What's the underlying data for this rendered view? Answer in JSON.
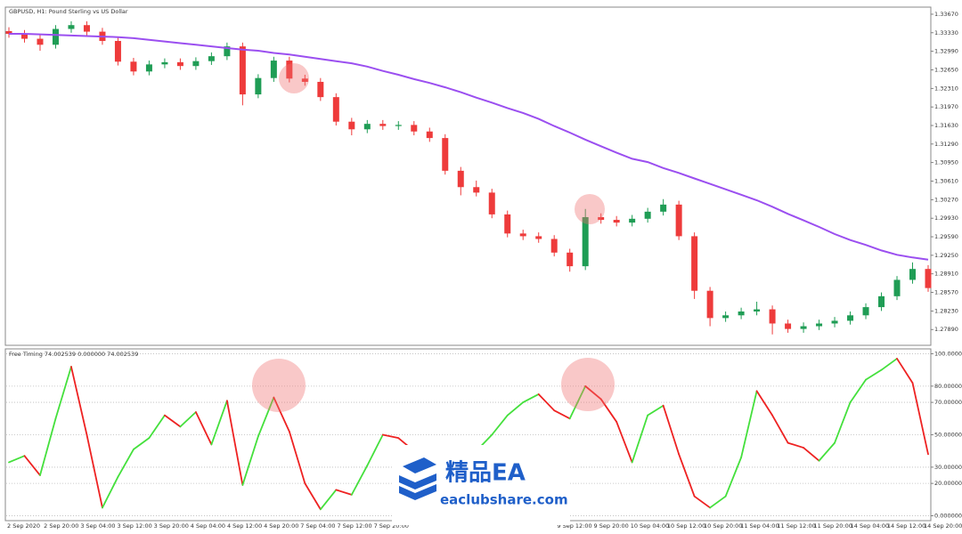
{
  "chart_data": [
    {
      "type": "candlestick",
      "title": "GBPUSD, H1: Pound Sterling vs US Dollar",
      "up_color": "#1f9d55",
      "down_color": "#ee3b3b",
      "ylim": [
        1.276,
        1.338
      ],
      "yticks": [
        {
          "value": 1.3367,
          "label": "1.33670"
        },
        {
          "value": 1.3333,
          "label": "1.33330"
        },
        {
          "value": 1.3299,
          "label": "1.32990"
        },
        {
          "value": 1.3265,
          "label": "1.32650"
        },
        {
          "value": 1.3231,
          "label": "1.32310"
        },
        {
          "value": 1.3197,
          "label": "1.31970"
        },
        {
          "value": 1.3163,
          "label": "1.31630"
        },
        {
          "value": 1.3129,
          "label": "1.31290"
        },
        {
          "value": 1.3095,
          "label": "1.30950"
        },
        {
          "value": 1.3061,
          "label": "1.30610"
        },
        {
          "value": 1.3027,
          "label": "1.30270"
        },
        {
          "value": 1.2993,
          "label": "1.29930"
        },
        {
          "value": 1.2959,
          "label": "1.29590"
        },
        {
          "value": 1.2925,
          "label": "1.29250"
        },
        {
          "value": 1.2891,
          "label": "1.28910"
        },
        {
          "value": 1.2857,
          "label": "1.28570"
        },
        {
          "value": 1.2823,
          "label": "1.28230"
        },
        {
          "value": 1.2789,
          "label": "1.27890"
        }
      ],
      "open": [
        1.3336,
        1.3331,
        1.3322,
        1.3311,
        1.334,
        1.3347,
        1.3335,
        1.3318,
        1.328,
        1.3262,
        1.3275,
        1.3279,
        1.3272,
        1.3281,
        1.329,
        1.3308,
        1.322,
        1.325,
        1.3282,
        1.3249,
        1.3243,
        1.3215,
        1.317,
        1.3156,
        1.3166,
        1.3162,
        1.3164,
        1.3152,
        1.314,
        1.308,
        1.305,
        1.304,
        1.3,
        1.2965,
        1.296,
        1.2955,
        1.293,
        1.2905,
        1.2995,
        1.299,
        1.2985,
        1.2992,
        1.3005,
        1.3018,
        1.296,
        1.286,
        1.281,
        1.2815,
        1.2822,
        1.2826,
        1.28,
        1.279,
        1.2795,
        1.28,
        1.2805,
        1.2815,
        1.283,
        1.285,
        1.288,
        1.29
      ],
      "high": [
        1.3343,
        1.3338,
        1.3329,
        1.3347,
        1.3354,
        1.3354,
        1.3342,
        1.3325,
        1.3287,
        1.3282,
        1.3286,
        1.3286,
        1.3288,
        1.3297,
        1.3315,
        1.3315,
        1.3257,
        1.3289,
        1.3289,
        1.3256,
        1.325,
        1.3222,
        1.3177,
        1.3173,
        1.3173,
        1.3171,
        1.3171,
        1.3159,
        1.3147,
        1.3087,
        1.3062,
        1.3047,
        1.3007,
        1.2972,
        1.2967,
        1.2962,
        1.2937,
        1.301,
        1.3002,
        1.2997,
        1.2999,
        1.3012,
        1.3028,
        1.3025,
        1.2967,
        1.2867,
        1.2822,
        1.2829,
        1.284,
        1.2833,
        1.2807,
        1.2802,
        1.2807,
        1.2812,
        1.2822,
        1.2837,
        1.2857,
        1.2887,
        1.2912,
        1.2907
      ],
      "low": [
        1.3324,
        1.3315,
        1.33,
        1.3304,
        1.3333,
        1.3328,
        1.3311,
        1.3273,
        1.3255,
        1.3255,
        1.3268,
        1.3265,
        1.3265,
        1.3274,
        1.3283,
        1.32,
        1.3213,
        1.3243,
        1.3242,
        1.3236,
        1.3208,
        1.3163,
        1.3145,
        1.3149,
        1.3155,
        1.3155,
        1.3145,
        1.3133,
        1.3073,
        1.3035,
        1.3033,
        1.2993,
        1.2958,
        1.2953,
        1.2948,
        1.2923,
        1.2895,
        1.2898,
        1.2983,
        1.2978,
        1.2978,
        1.2985,
        1.2998,
        1.2953,
        1.2845,
        1.2795,
        1.2803,
        1.2808,
        1.2815,
        1.278,
        1.2783,
        1.2783,
        1.2788,
        1.2793,
        1.2798,
        1.2808,
        1.2823,
        1.2843,
        1.2873,
        1.2858
      ],
      "close": [
        1.3331,
        1.3322,
        1.3311,
        1.334,
        1.3347,
        1.3335,
        1.3318,
        1.328,
        1.3262,
        1.3275,
        1.3279,
        1.3272,
        1.3281,
        1.329,
        1.3308,
        1.322,
        1.325,
        1.3282,
        1.3249,
        1.3243,
        1.3215,
        1.317,
        1.3156,
        1.3166,
        1.3162,
        1.3164,
        1.3152,
        1.314,
        1.308,
        1.305,
        1.304,
        1.3,
        1.2965,
        1.296,
        1.2955,
        1.293,
        1.2905,
        1.2995,
        1.299,
        1.2985,
        1.2992,
        1.3005,
        1.3018,
        1.296,
        1.286,
        1.281,
        1.2815,
        1.2822,
        1.2826,
        1.28,
        1.279,
        1.2795,
        1.28,
        1.2805,
        1.2815,
        1.283,
        1.285,
        1.288,
        1.29,
        1.2865
      ],
      "ma": {
        "color": "#9b4ff0",
        "values": [
          1.3331,
          1.3331,
          1.333,
          1.3329,
          1.3328,
          1.3327,
          1.3326,
          1.3325,
          1.3323,
          1.332,
          1.3317,
          1.3314,
          1.3311,
          1.3308,
          1.3305,
          1.3302,
          1.33,
          1.3296,
          1.3293,
          1.3289,
          1.3285,
          1.3281,
          1.3277,
          1.3271,
          1.3263,
          1.3256,
          1.3248,
          1.3241,
          1.3233,
          1.3224,
          1.3214,
          1.3205,
          1.3195,
          1.3186,
          1.3175,
          1.3162,
          1.315,
          1.3137,
          1.3125,
          1.3113,
          1.3102,
          1.3096,
          1.3085,
          1.3076,
          1.3066,
          1.3056,
          1.3046,
          1.3036,
          1.3026,
          1.3014,
          1.3001,
          1.2989,
          1.2977,
          1.2964,
          1.2953,
          1.2944,
          1.2934,
          1.2926,
          1.2921,
          1.2917
        ]
      }
    },
    {
      "type": "oscillator",
      "title": "Free Timing 74.002539 0.000000 74.002539",
      "rising_color": "#44e03c",
      "falling_color": "#ee2222",
      "ylim": [
        -3,
        103
      ],
      "yticks": [
        {
          "value": 100,
          "label": "100.000000"
        },
        {
          "value": 80,
          "label": "80.000000"
        },
        {
          "value": 70,
          "label": "70.000000"
        },
        {
          "value": 50,
          "label": "50.000000"
        },
        {
          "value": 30,
          "label": "30.000000"
        },
        {
          "value": 20,
          "label": "20.000000"
        },
        {
          "value": 0,
          "label": "0.000000"
        }
      ],
      "grid": true,
      "values": [
        33,
        37,
        25,
        60,
        92,
        50,
        5,
        24,
        41,
        48,
        62,
        55,
        64,
        44,
        71,
        19,
        49,
        73,
        52,
        20,
        4,
        16,
        13,
        31,
        50,
        48,
        40,
        30,
        25,
        30,
        40,
        50,
        62,
        70,
        75,
        65,
        60,
        80,
        72,
        58,
        33,
        62,
        68,
        38,
        12,
        5,
        12,
        36,
        77,
        62,
        45,
        42,
        34,
        45,
        70,
        84,
        90,
        97,
        82,
        38
      ],
      "time_labels": [
        "2 Sep 2020",
        "2 Sep 20:00",
        "3 Sep 04:00",
        "3 Sep 12:00",
        "3 Sep 20:00",
        "4 Sep 04:00",
        "4 Sep 12:00",
        "4 Sep 20:00",
        "7 Sep 04:00",
        "7 Sep 12:00",
        "7 Sep 20:00",
        null,
        null,
        null,
        null,
        "9 Sep 12:00",
        "9 Sep 20:00",
        "10 Sep 04:00",
        "10 Sep 12:00",
        "10 Sep 20:00",
        "11 Sep 04:00",
        "11 Sep 12:00",
        "11 Sep 20:00",
        "14 Sep 04:00",
        "14 Sep 12:00",
        "14 Sep 20:00"
      ]
    }
  ],
  "watermark": {
    "title": "精品EA",
    "url": "eaclubshare.com"
  }
}
